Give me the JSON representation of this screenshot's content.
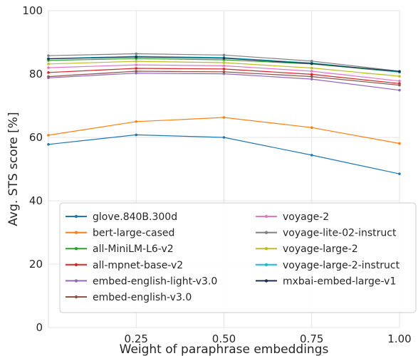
{
  "chart_data": {
    "type": "line",
    "xlabel": "Weight of paraphrase embeddings",
    "ylabel": "Avg. STS score [%]",
    "x": [
      0.0,
      0.25,
      0.5,
      0.75,
      1.0
    ],
    "xticks": [
      0.25,
      0.5,
      0.75,
      1.0
    ],
    "xtick_labels": [
      "0.25",
      "0.50",
      "0.75",
      "1.00"
    ],
    "yticks": [
      0,
      20,
      40,
      60,
      80,
      100
    ],
    "ytick_labels": [
      "0",
      "20",
      "40",
      "60",
      "80",
      "100"
    ],
    "xlim": [
      0.0,
      1.0
    ],
    "ylim": [
      0,
      100
    ],
    "grid": true,
    "legend_position": "bottom",
    "series": [
      {
        "name": "glove.840B.300d",
        "color": "#1f77b4",
        "values": [
          57.8,
          60.8,
          60.0,
          54.4,
          48.5
        ]
      },
      {
        "name": "bert-large-cased",
        "color": "#ff7f0e",
        "values": [
          60.7,
          65.0,
          66.3,
          63.1,
          58.1
        ]
      },
      {
        "name": "all-MiniLM-L6-v2",
        "color": "#2ca02c",
        "values": [
          84.3,
          84.9,
          84.5,
          83.2,
          80.6
        ]
      },
      {
        "name": "all-mpnet-base-v2",
        "color": "#d62728",
        "values": [
          80.5,
          81.8,
          81.6,
          79.9,
          77.0
        ]
      },
      {
        "name": "embed-english-light-v3.0",
        "color": "#9467bd",
        "values": [
          78.8,
          80.3,
          80.1,
          78.4,
          74.9
        ]
      },
      {
        "name": "embed-english-v3.0",
        "color": "#8c564b",
        "values": [
          79.2,
          80.9,
          80.7,
          79.2,
          76.5
        ]
      },
      {
        "name": "voyage-2",
        "color": "#e377c2",
        "values": [
          82.0,
          82.9,
          82.6,
          80.9,
          77.8
        ]
      },
      {
        "name": "voyage-lite-02-instruct",
        "color": "#7f7f7f",
        "values": [
          85.8,
          86.4,
          86.0,
          84.1,
          80.9
        ]
      },
      {
        "name": "voyage-large-2",
        "color": "#bcbd22",
        "values": [
          83.2,
          84.0,
          83.6,
          81.9,
          79.3
        ]
      },
      {
        "name": "voyage-large-2-instruct",
        "color": "#17becf",
        "values": [
          84.9,
          85.6,
          85.2,
          83.5,
          80.6
        ]
      },
      {
        "name": "mxbai-embed-large-v1",
        "color": "#1f2f4f",
        "values": [
          84.8,
          85.4,
          85.0,
          83.3,
          80.8
        ]
      }
    ]
  }
}
